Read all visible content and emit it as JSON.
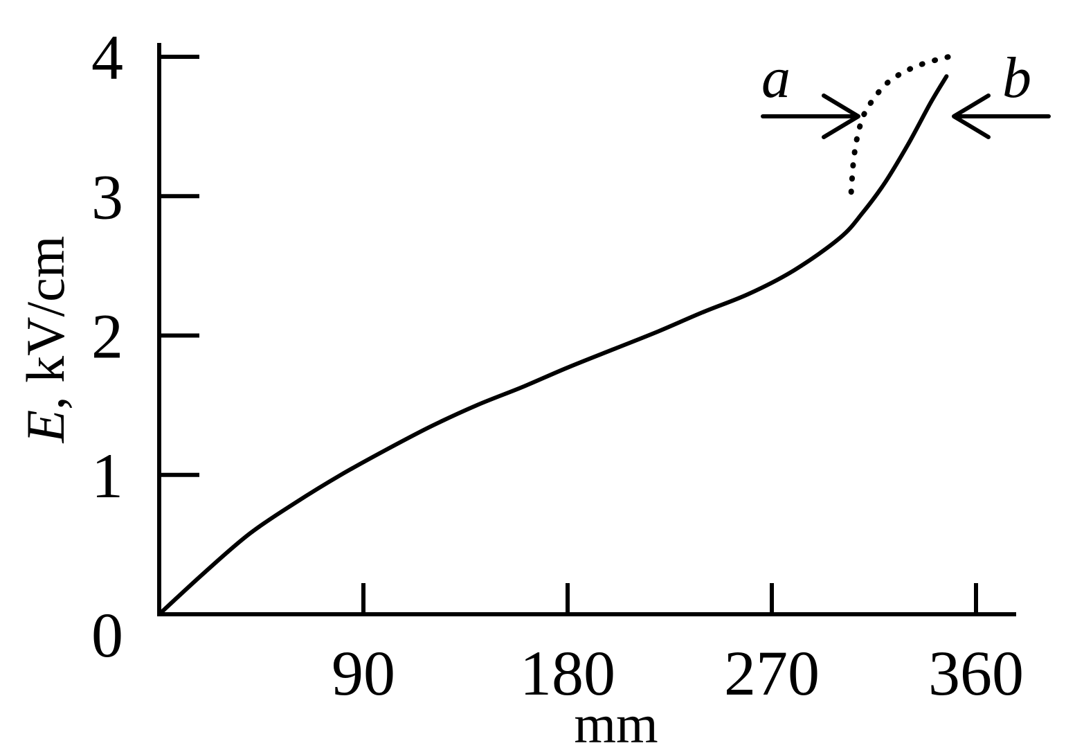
{
  "chart_data": {
    "type": "line",
    "title": "",
    "xlabel": "mm",
    "ylabel_italic": "E",
    "ylabel_rest": ", kV/cm",
    "xlim": [
      0,
      375
    ],
    "ylim": [
      0,
      4
    ],
    "x_ticks": [
      {
        "value": 0,
        "label": "0"
      },
      {
        "value": 90,
        "label": "90"
      },
      {
        "value": 180,
        "label": "180"
      },
      {
        "value": 270,
        "label": "270"
      },
      {
        "value": 360,
        "label": "360"
      }
    ],
    "y_ticks": [
      {
        "value": 1,
        "label": "1"
      },
      {
        "value": 2,
        "label": "2"
      },
      {
        "value": 3,
        "label": "3"
      },
      {
        "value": 4,
        "label": "4"
      }
    ],
    "series": [
      {
        "name": "b",
        "style": "solid",
        "x": [
          0,
          20,
          40,
          60,
          80,
          100,
          120,
          140,
          160,
          180,
          200,
          220,
          240,
          260,
          280,
          300,
          310,
          320,
          330,
          340,
          347
        ],
        "y": [
          0,
          0.3,
          0.58,
          0.8,
          1.0,
          1.18,
          1.35,
          1.5,
          1.63,
          1.77,
          1.9,
          2.03,
          2.17,
          2.3,
          2.47,
          2.7,
          2.88,
          3.1,
          3.37,
          3.67,
          3.86
        ]
      },
      {
        "name": "a",
        "style": "dotted",
        "x": [
          305,
          306,
          308,
          311,
          315,
          320,
          327,
          335,
          343,
          348
        ],
        "y": [
          3.03,
          3.25,
          3.45,
          3.6,
          3.7,
          3.8,
          3.88,
          3.94,
          3.98,
          4.0
        ]
      }
    ],
    "annotations": [
      {
        "label": "a",
        "arrow_points_to": "dotted curve",
        "direction": "right"
      },
      {
        "label": "b",
        "arrow_points_to": "solid curve",
        "direction": "left"
      }
    ],
    "grid": false,
    "legend": "none"
  }
}
